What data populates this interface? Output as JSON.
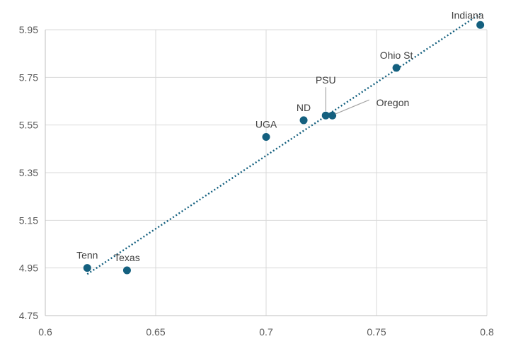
{
  "chart_data": {
    "type": "scatter",
    "title": "",
    "xlabel": "",
    "ylabel": "",
    "xlim": [
      0.6,
      0.8
    ],
    "ylim": [
      4.75,
      6.05
    ],
    "x_ticks": [
      "0.6",
      "0.65",
      "0.7",
      "0.75",
      "0.8"
    ],
    "y_ticks": [
      "4.75",
      "4.95",
      "5.15",
      "5.35",
      "5.55",
      "5.75",
      "5.95"
    ],
    "grid": true,
    "legend": "none",
    "marker_color": "#14607f",
    "trendline": {
      "type": "linear",
      "style": "dotted",
      "color": "#14607f"
    },
    "series": [
      {
        "points": [
          {
            "label": "Tenn",
            "x": 0.619,
            "y": 4.95
          },
          {
            "label": "Texas",
            "x": 0.637,
            "y": 4.94
          },
          {
            "label": "UGA",
            "x": 0.7,
            "y": 5.5
          },
          {
            "label": "ND",
            "x": 0.717,
            "y": 5.57
          },
          {
            "label": "PSU",
            "x": 0.727,
            "y": 5.59
          },
          {
            "label": "Oregon",
            "x": 0.73,
            "y": 5.59
          },
          {
            "label": "Ohio St",
            "x": 0.759,
            "y": 5.79
          },
          {
            "label": "Indiana",
            "x": 0.797,
            "y": 5.97
          }
        ]
      }
    ]
  }
}
